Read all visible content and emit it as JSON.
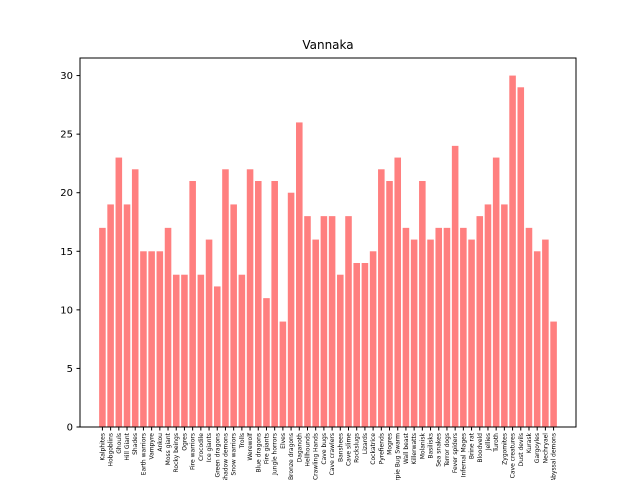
{
  "chart_data": {
    "type": "bar",
    "title": "Vannaka",
    "xlabel": "",
    "ylabel": "",
    "ylim": [
      0,
      31.5
    ],
    "yticks": [
      0,
      5,
      10,
      15,
      20,
      25,
      30
    ],
    "grid": false,
    "bar_color": "#ff7f7f",
    "categories": [
      "Kalphites",
      "Hobgoblins",
      "Ghouls",
      "Hill Giant",
      "Shades",
      "Earth warriors",
      "Vampyre",
      "Ankou",
      "Moss giant",
      "Rocky beings",
      "Ogres",
      "Fire warriors",
      "Crocodile",
      "Ice giants",
      "Green dragons",
      "Shadow demons",
      "Snow warriors",
      "Trolls",
      "Werewolf",
      "Blue dragons",
      "Fire giants",
      "Jungle horrors",
      "Elves",
      "Bronze dragons",
      "Daganoth",
      "Hellhounds",
      "Crawling Hands",
      "Cave bugs",
      "Cave crawlers",
      "Banshees",
      "Cave slime",
      "Rockslugs",
      "Lizards",
      "Cockatrice",
      "Pyrefiends",
      "Mogres",
      "Harpie Bug Swarm",
      "Wall beast",
      "Killerwatts",
      "Molanisk",
      "Basilisks",
      "Sea snakes",
      "Terror dogs",
      "Fever spiders",
      "Infernal Mages",
      "Brine rat",
      "Bloodveld",
      "Jellies",
      "Turoth",
      "Zygomites",
      "Cave creatures",
      "Dust devils",
      "Kurask",
      "Gargoyles",
      "Nechryael",
      "Abyssal demons"
    ],
    "values": [
      17,
      19,
      23,
      19,
      22,
      15,
      15,
      15,
      17,
      13,
      13,
      21,
      13,
      16,
      12,
      22,
      19,
      13,
      22,
      21,
      11,
      21,
      9,
      20,
      26,
      18,
      16,
      18,
      18,
      13,
      18,
      14,
      14,
      15,
      22,
      21,
      23,
      17,
      16,
      21,
      16,
      17,
      17,
      24,
      17,
      16,
      18,
      19,
      23,
      19,
      30,
      29,
      17,
      15,
      16,
      9
    ]
  }
}
